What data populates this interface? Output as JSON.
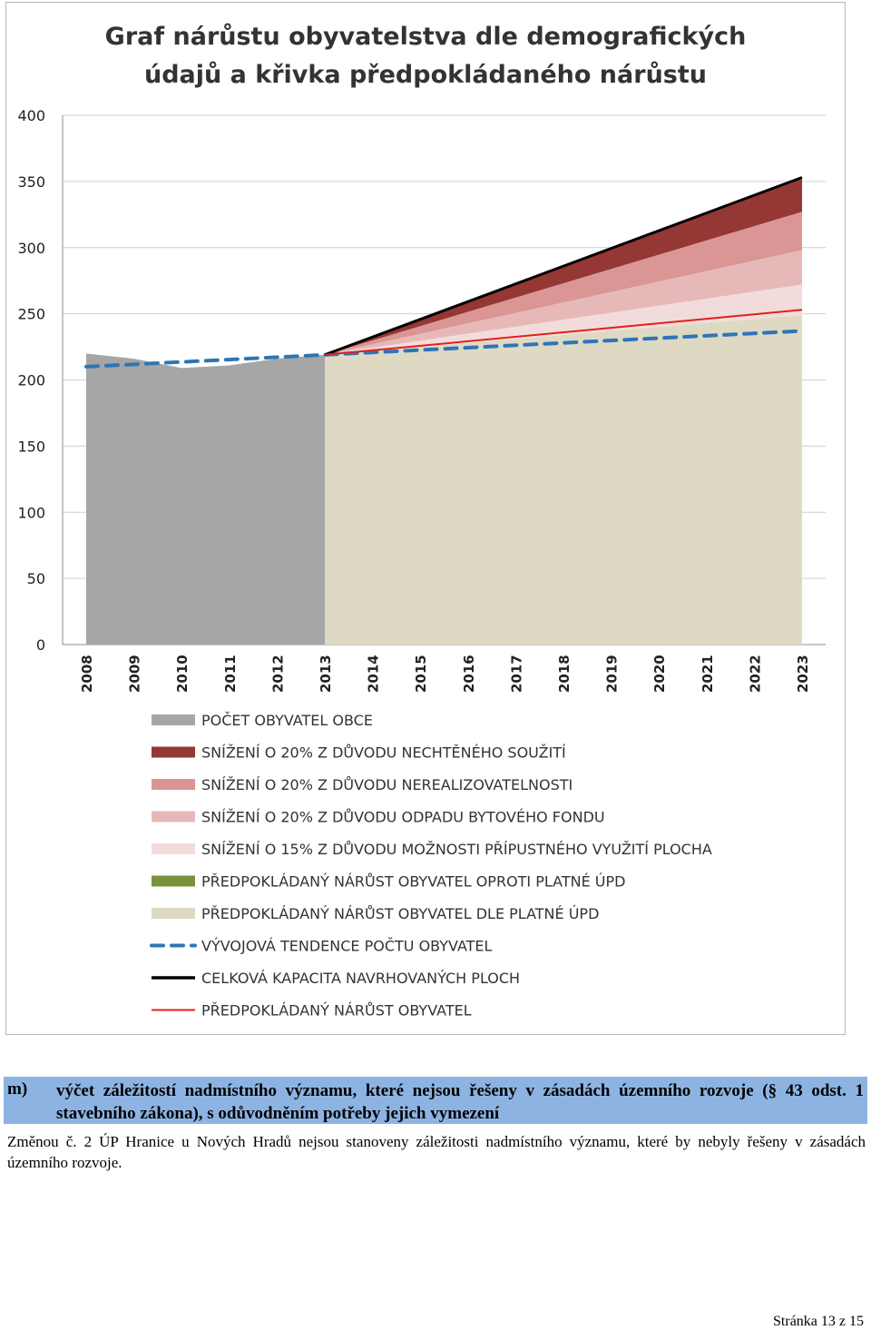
{
  "chart_data": {
    "type": "area",
    "title_lines": [
      "Graf nárůstu obyvatelstva dle demografických",
      "údajů a křivka předpokládaného nárůstu"
    ],
    "ylim": [
      0,
      400
    ],
    "yticks": [
      0,
      50,
      100,
      150,
      200,
      250,
      300,
      350,
      400
    ],
    "categories": [
      "2008",
      "2009",
      "2010",
      "2011",
      "2012",
      "2013",
      "2014",
      "2015",
      "2016",
      "2017",
      "2018",
      "2019",
      "2020",
      "2021",
      "2022",
      "2023"
    ],
    "grid": true,
    "legend_position": "bottom",
    "series": [
      {
        "name": "POČET OBYVATEL OBCE",
        "kind": "area",
        "color": "#a6a6a6",
        "x": [
          "2008",
          "2009",
          "2010",
          "2011",
          "2012",
          "2013"
        ],
        "values": [
          220,
          216,
          209,
          211,
          216,
          219
        ]
      },
      {
        "name": "SNÍŽENÍ O 20% Z DŮVODU NECHTĚNÉHO SOUŽITÍ",
        "kind": "band",
        "color": "#953735",
        "x": [
          "2013",
          "2023"
        ],
        "lower": [
          219,
          327
        ],
        "upper": [
          219,
          352
        ]
      },
      {
        "name": "SNÍŽENÍ O 20% Z DŮVODU NEREALIZOVATELNOSTI",
        "kind": "band",
        "color": "#d99694",
        "x": [
          "2013",
          "2023"
        ],
        "lower": [
          219,
          298
        ],
        "upper": [
          219,
          327
        ]
      },
      {
        "name": "SNÍŽENÍ O 20% Z DŮVODU ODPADU BYTOVÉHO FONDU",
        "kind": "band",
        "color": "#e6b9b8",
        "x": [
          "2013",
          "2023"
        ],
        "lower": [
          219,
          272
        ],
        "upper": [
          219,
          298
        ]
      },
      {
        "name": "SNÍŽENÍ O 15% Z DŮVODU MOŽNOSTI PŘÍPUSTNÉHO VYUŽITÍ PLOCHA",
        "kind": "band",
        "color": "#f2dcdb",
        "x": [
          "2013",
          "2023"
        ],
        "lower": [
          219,
          249
        ],
        "upper": [
          219,
          272
        ]
      },
      {
        "name": "PŘEDPOKLÁDANÝ NÁRŮST OBYVATEL OPROTI PLATNÉ ÚPD",
        "kind": "band",
        "color": "#77933c",
        "x": [
          "2013",
          "2023"
        ],
        "lower": [
          219,
          249
        ],
        "upper": [
          219,
          249
        ]
      },
      {
        "name": "PŘEDPOKLÁDANÝ NÁRŮST OBYVATEL DLE PLATNÉ ÚPD",
        "kind": "area",
        "color": "#ddd9c3",
        "x": [
          "2013",
          "2023"
        ],
        "values": [
          219,
          249
        ]
      },
      {
        "name": "VÝVOJOVÁ TENDENCE POČTU OBYVATEL",
        "kind": "dashed-line",
        "color": "#2e75b6",
        "x": [
          "2008",
          "2023"
        ],
        "values": [
          210,
          237
        ]
      },
      {
        "name": "CELKOVÁ KAPACITA NAVRHOVANÝCH PLOCH",
        "kind": "line",
        "color": "#000000",
        "x": [
          "2013",
          "2023"
        ],
        "values": [
          219,
          353
        ]
      },
      {
        "name": "PŘEDPOKLÁDANÝ NÁRŮST OBYVATEL",
        "kind": "line",
        "color": "#e0201b",
        "x": [
          "2013",
          "2023"
        ],
        "values": [
          219,
          253
        ]
      }
    ]
  },
  "section": {
    "letter": "m)",
    "heading": "výčet záležitostí nadmístního významu, které nejsou řešeny v zásadách územního rozvoje (§ 43 odst. 1 stavebního zákona), s odůvodněním potřeby jejich vymezení",
    "body": "Změnou č. 2 ÚP Hranice u Nových Hradů nejsou stanoveny záležitosti nadmístního významu, které by nebyly řešeny v zásadách územního rozvoje."
  },
  "footer": {
    "page": "Stránka 13 z 15"
  }
}
